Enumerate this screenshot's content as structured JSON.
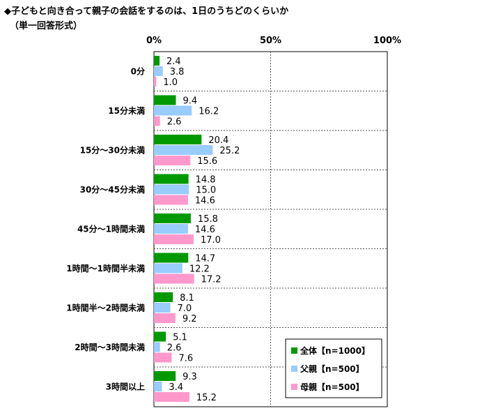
{
  "title": "◆子どもと向き合って親子の会話をするのは、1日のうちどのくらいか",
  "subtitle": "（単一回答形式）",
  "chart_data": {
    "type": "bar",
    "orientation": "horizontal",
    "title": "◆子どもと向き合って親子の会話をするのは、1日のうちどのくらいか",
    "subtitle": "（単一回答形式）",
    "xlim": [
      0,
      100
    ],
    "x_ticks": [
      "0%",
      "50%",
      "100%"
    ],
    "x_tick_values": [
      0,
      50,
      100
    ],
    "grid": true,
    "legend_position": "bottom-right",
    "categories": [
      "0分",
      "15分未満",
      "15分～30分未満",
      "30分～45分未満",
      "45分～1時間未満",
      "1時間～1時間半未満",
      "1時間半～2時間未満",
      "2時間～3時間未満",
      "3時間以上"
    ],
    "series": [
      {
        "name": "全体【n=1000】",
        "color": "#009900",
        "values": [
          2.4,
          9.4,
          20.4,
          14.8,
          15.8,
          14.7,
          8.1,
          5.1,
          9.3
        ]
      },
      {
        "name": "父親【n=500】",
        "color": "#99ccff",
        "values": [
          3.8,
          16.2,
          25.2,
          15.0,
          14.6,
          12.2,
          7.0,
          2.6,
          3.4
        ]
      },
      {
        "name": "母親【n=500】",
        "color": "#ff99cc",
        "values": [
          1.0,
          2.6,
          15.6,
          14.6,
          17.0,
          17.2,
          9.2,
          7.6,
          15.2
        ]
      }
    ]
  }
}
